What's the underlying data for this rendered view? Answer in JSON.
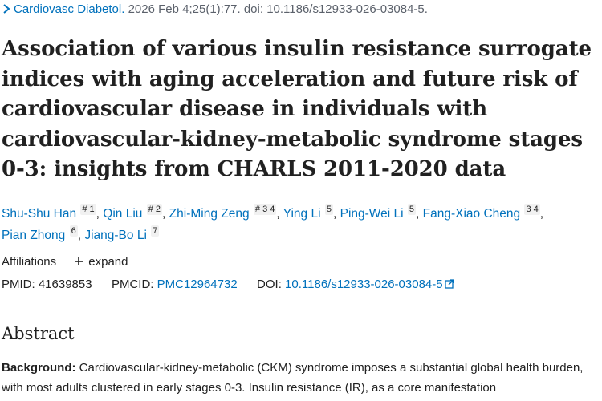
{
  "citation": {
    "journal": "Cardiovasc Diabetol.",
    "details": " 2026 Feb 4;25(1):77. doi: 10.1186/s12933-026-03084-5."
  },
  "article": {
    "title_lines": [
      "Association of various insulin resistance surrogate",
      "indices with aging acceleration and future risk of",
      "cardiovascular disease in individuals with",
      "cardiovascular-kidney-metabolic syndrome stages",
      "0-3: insights from CHARLS 2011-2020 data"
    ]
  },
  "authors": [
    {
      "name": "Shu-Shu Han",
      "sup": "# 1"
    },
    {
      "name": "Qin Liu",
      "sup": "# 2"
    },
    {
      "name": "Zhi-Ming Zeng",
      "sup": "# 3 4"
    },
    {
      "name": "Ying Li",
      "sup": "5"
    },
    {
      "name": "Ping-Wei Li",
      "sup": "5"
    },
    {
      "name": "Fang-Xiao Cheng",
      "sup": "3 4"
    },
    {
      "name": "Pian Zhong",
      "sup": "6"
    },
    {
      "name": "Jiang-Bo Li",
      "sup": "7"
    }
  ],
  "affiliations": {
    "label": "Affiliations",
    "expand_label": "expand"
  },
  "identifiers": {
    "pmid_label": "PMID:",
    "pmid": "41639853",
    "pmcid_label": "PMCID:",
    "pmcid": "PMC12964732",
    "doi_label": "DOI:",
    "doi": "10.1186/s12933-026-03084-5"
  },
  "abstract": {
    "heading": "Abstract",
    "background_label": "Background:",
    "background_text": " Cardiovascular-kidney-metabolic (CKM) syndrome imposes a substantial global health burden, with most adults clustered in early stages 0-3. Insulin resistance (IR), as a core manifestation"
  },
  "icons": {
    "chevron": "chevron-right-icon",
    "plus": "plus-icon",
    "external": "external-link-icon"
  },
  "colors": {
    "link": "#0071bc",
    "text": "#212121",
    "muted": "#5b616b"
  }
}
